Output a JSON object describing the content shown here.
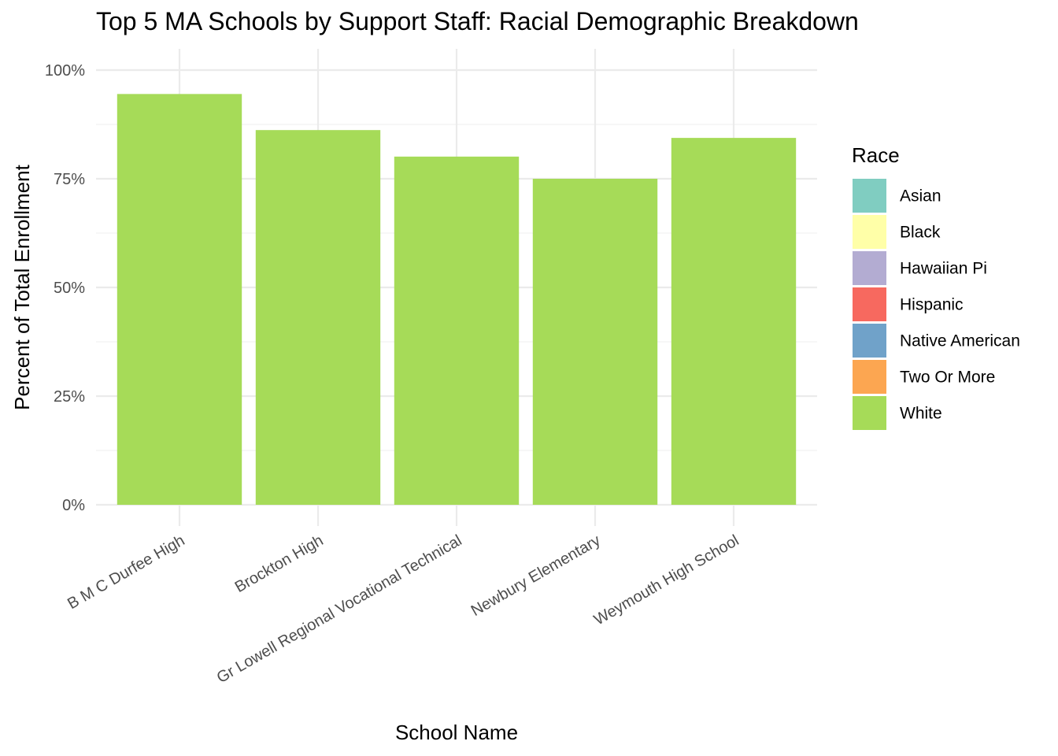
{
  "chart_data": {
    "type": "bar",
    "stacked": true,
    "title": "Top 5 MA Schools by Support Staff: Racial Demographic Breakdown",
    "xlabel": "School Name",
    "ylabel": "Percent of Total Enrollment",
    "categories": [
      "B M C Durfee High",
      "Brockton High",
      "Gr Lowell Regional Vocational Technical",
      "Newbury Elementary",
      "Weymouth High School"
    ],
    "ylim": [
      0,
      1
    ],
    "y_ticks": [
      0,
      0.25,
      0.5,
      0.75,
      1.0
    ],
    "y_tick_labels": [
      "0%",
      "25%",
      "50%",
      "75%",
      "100%"
    ],
    "grid": true,
    "legend": {
      "title": "Race",
      "placement": "right"
    },
    "series": [
      {
        "name": "Asian",
        "color": "#80cdc1",
        "values": [
          0,
          0,
          0,
          0,
          0
        ]
      },
      {
        "name": "Black",
        "color": "#ffffa8",
        "values": [
          0,
          0,
          0,
          0,
          0
        ]
      },
      {
        "name": "Hawaiian Pi",
        "color": "#b3acd2",
        "values": [
          0,
          0,
          0,
          0,
          0
        ]
      },
      {
        "name": "Hispanic",
        "color": "#f7695f",
        "values": [
          0,
          0,
          0,
          0,
          0
        ]
      },
      {
        "name": "Native American",
        "color": "#70a2c9",
        "values": [
          0,
          0,
          0,
          0,
          0
        ]
      },
      {
        "name": "Two Or More",
        "color": "#fca651",
        "values": [
          0,
          0,
          0,
          0,
          0
        ]
      },
      {
        "name": "White",
        "color": "#a6db58",
        "values": [
          0.945,
          0.862,
          0.801,
          0.75,
          0.844
        ]
      }
    ]
  }
}
